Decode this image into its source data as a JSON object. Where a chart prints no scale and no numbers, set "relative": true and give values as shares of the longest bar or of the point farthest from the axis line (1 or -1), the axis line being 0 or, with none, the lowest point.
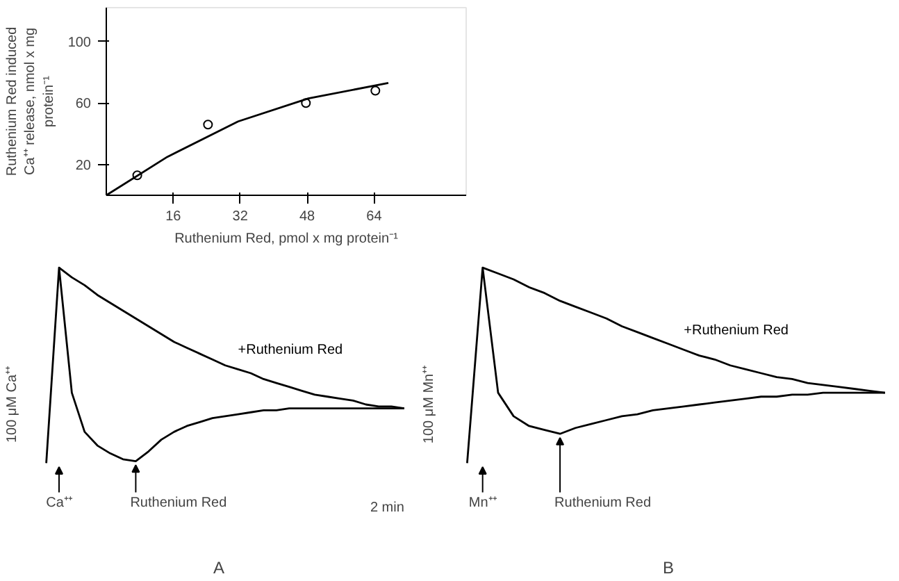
{
  "chart_data": [
    {
      "type": "scatter",
      "xlabel": "Ruthenium Red, pmol x mg protein⁻¹",
      "ylabel": "Ruthenium Red induced\nCa⁺⁺ release, nmol x mg\nprotein⁻¹",
      "xlim": [
        0,
        86
      ],
      "ylim": [
        0,
        122
      ],
      "xticks": [
        16,
        32,
        48,
        64
      ],
      "yticks": [
        20,
        60,
        100
      ],
      "marker": "circle",
      "series": [
        {
          "type": "scatter",
          "color": "#000000",
          "x": [
            7.4,
            24.3,
            47.7,
            64.3
          ],
          "values": [
            13,
            46,
            60,
            68
          ]
        },
        {
          "type": "line",
          "color": "#000000",
          "marker": "none",
          "x": [
            0,
            14.6,
            31.5,
            48.3,
            67.4
          ],
          "values": [
            0,
            25,
            48,
            63,
            73
          ]
        }
      ]
    },
    {
      "type": "line",
      "relative": true,
      "xlabel": "A",
      "ylabel": "100 μM Ca⁺⁺",
      "categories": [
        null,
        null,
        null,
        null,
        null,
        null,
        null,
        null,
        null,
        null,
        null,
        null,
        null,
        null,
        null,
        null,
        null,
        null,
        null,
        null,
        null,
        null,
        null,
        null,
        null,
        null,
        null,
        null,
        null
      ],
      "annotations": [
        "Ca⁺⁺",
        "Ruthenium Red",
        "2 min"
      ],
      "series": [
        {
          "name": "+Ruthenium Red",
          "color": "#000000",
          "values": [
            null,
            1.0,
            0.95,
            0.91,
            0.86,
            0.82,
            0.78,
            0.74,
            0.7,
            0.66,
            0.62,
            0.59,
            0.56,
            0.53,
            0.5,
            0.48,
            0.46,
            0.43,
            0.41,
            0.39,
            0.37,
            0.35,
            0.34,
            0.33,
            0.32,
            0.3,
            0.29,
            0.29,
            0.28
          ]
        },
        {
          "color": "#000000",
          "values": [
            0,
            1.0,
            0.36,
            0.16,
            0.09,
            0.05,
            0.02,
            0.01,
            0.06,
            0.12,
            0.16,
            0.19,
            0.21,
            0.23,
            0.24,
            0.25,
            0.26,
            0.27,
            0.27,
            0.28,
            0.28,
            0.28,
            0.28,
            0.28,
            0.28,
            0.28,
            0.28,
            0.28,
            0.28
          ]
        }
      ]
    },
    {
      "type": "line",
      "relative": true,
      "xlabel": "B",
      "ylabel": "100 μM Mn⁺⁺",
      "categories": [
        null,
        null,
        null,
        null,
        null,
        null,
        null,
        null,
        null,
        null,
        null,
        null,
        null,
        null,
        null,
        null,
        null,
        null,
        null,
        null,
        null,
        null,
        null,
        null,
        null,
        null,
        null,
        null
      ],
      "annotations": [
        "Mn⁺⁺",
        "Ruthenium Red"
      ],
      "series": [
        {
          "name": "+Ruthenium Red",
          "color": "#000000",
          "values": [
            null,
            1.0,
            0.97,
            0.94,
            0.9,
            0.87,
            0.83,
            0.8,
            0.77,
            0.74,
            0.7,
            0.67,
            0.64,
            0.61,
            0.58,
            0.55,
            0.53,
            0.5,
            0.48,
            0.46,
            0.44,
            0.43,
            0.41,
            0.4,
            0.39,
            0.38,
            0.37,
            0.36
          ]
        },
        {
          "color": "#000000",
          "values": [
            0,
            1.0,
            0.36,
            0.24,
            0.19,
            0.17,
            0.15,
            0.18,
            0.2,
            0.22,
            0.24,
            0.25,
            0.27,
            0.28,
            0.29,
            0.3,
            0.31,
            0.32,
            0.33,
            0.34,
            0.34,
            0.35,
            0.35,
            0.36,
            0.36,
            0.36,
            0.36,
            0.36
          ]
        }
      ]
    }
  ]
}
